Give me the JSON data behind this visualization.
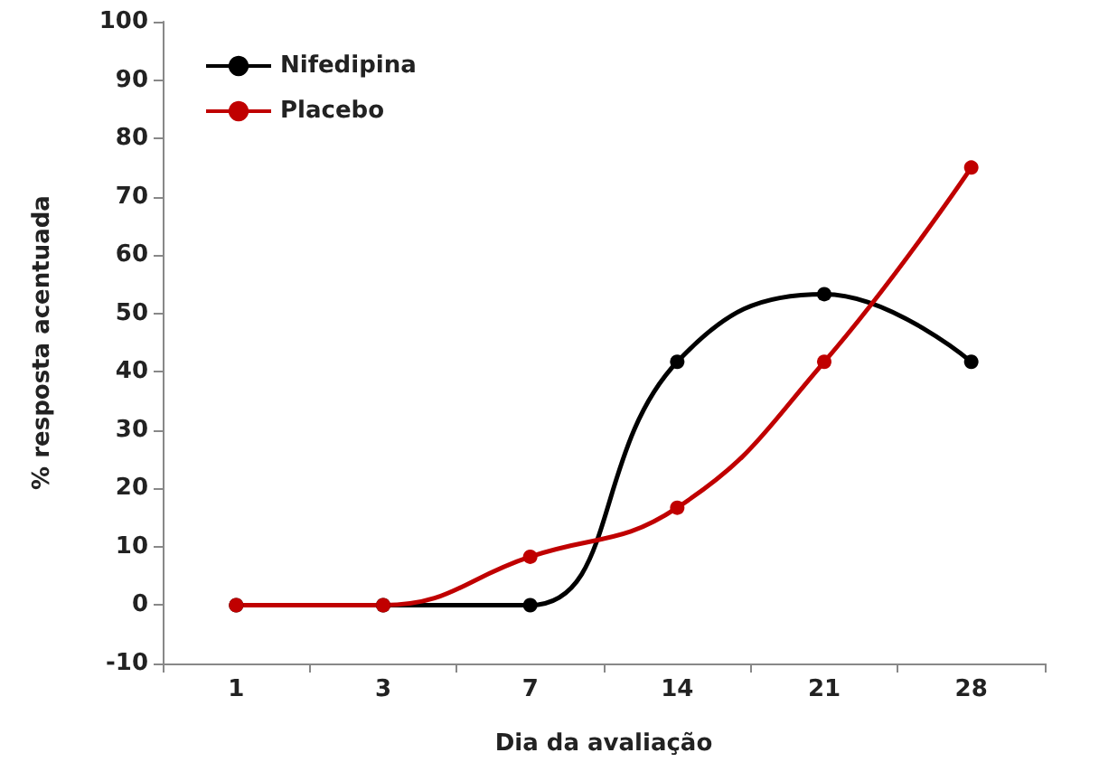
{
  "chart_data": {
    "type": "line",
    "xlabel": "Dia da avaliação",
    "ylabel": "% resposta acentuada",
    "categories": [
      "1",
      "3",
      "7",
      "14",
      "21",
      "28"
    ],
    "series": [
      {
        "name": "Nifedipina",
        "color": "#000000",
        "values": [
          0,
          0,
          0,
          41.7,
          53.3,
          41.7
        ]
      },
      {
        "name": "Placebo",
        "color": "#c00000",
        "values": [
          0,
          0,
          8.3,
          16.7,
          41.7,
          75
        ]
      }
    ],
    "ylim": [
      -10,
      100
    ],
    "yticks": [
      -10,
      0,
      10,
      20,
      30,
      40,
      50,
      60,
      70,
      80,
      90,
      100
    ],
    "grid": false,
    "legend": "top left",
    "marker": "circle",
    "line_style": "solid"
  }
}
